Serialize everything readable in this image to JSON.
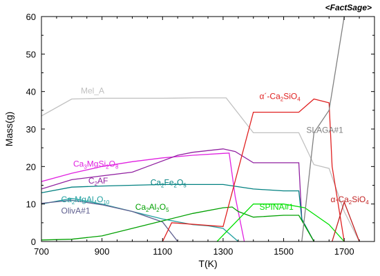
{
  "chart_data": {
    "type": "line",
    "brand": "<FactSage>",
    "xlabel": "T(K)",
    "ylabel": "Mass(g)",
    "xlim": [
      700,
      1800
    ],
    "ylim": [
      0,
      60
    ],
    "xticks": [
      700,
      900,
      1100,
      1300,
      1500,
      1700
    ],
    "yticks": [
      0,
      10,
      20,
      30,
      40,
      50,
      60
    ],
    "grid": false,
    "series": [
      {
        "name": "Mel_A",
        "color": "#c0c0c0",
        "label": {
          "parts": [
            {
              "t": "Mel_A"
            }
          ],
          "at": [
            830,
            39.5
          ]
        },
        "points": [
          [
            700,
            33.5
          ],
          [
            800,
            38
          ],
          [
            900,
            38.2
          ],
          [
            1000,
            38.2
          ],
          [
            1100,
            38.2
          ],
          [
            1200,
            38.3
          ],
          [
            1310,
            38.3
          ],
          [
            1400,
            29
          ],
          [
            1500,
            29
          ],
          [
            1550,
            29
          ],
          [
            1600,
            20.5
          ],
          [
            1650,
            19.5
          ],
          [
            1700,
            8
          ],
          [
            1750,
            0
          ]
        ]
      },
      {
        "name": "Ca3MgSi2O8",
        "color": "#e020e0",
        "label": {
          "parts": [
            {
              "t": "Ca"
            },
            {
              "t": "3",
              "s": 1
            },
            {
              "t": "MgSi"
            },
            {
              "t": "2",
              "s": 1
            },
            {
              "t": "O"
            },
            {
              "t": "8",
              "s": 1
            }
          ],
          "at": [
            805,
            20
          ]
        },
        "points": [
          [
            700,
            16
          ],
          [
            800,
            18.2
          ],
          [
            900,
            20
          ],
          [
            1000,
            21.3
          ],
          [
            1100,
            22.3
          ],
          [
            1200,
            23
          ],
          [
            1300,
            23.5
          ],
          [
            1320,
            23.6
          ],
          [
            1340,
            12
          ],
          [
            1370,
            0
          ]
        ]
      },
      {
        "name": "C2AF",
        "color": "#9020a0",
        "label": {
          "parts": [
            {
              "t": "C"
            },
            {
              "t": "2",
              "s": 1
            },
            {
              "t": "AF"
            }
          ],
          "at": [
            855,
            15.5
          ]
        },
        "points": [
          [
            700,
            14
          ],
          [
            800,
            16.5
          ],
          [
            900,
            17.5
          ],
          [
            1000,
            18.5
          ],
          [
            1050,
            20
          ],
          [
            1150,
            23
          ],
          [
            1200,
            23.8
          ],
          [
            1300,
            24.7
          ],
          [
            1340,
            24
          ],
          [
            1400,
            21
          ],
          [
            1500,
            21
          ],
          [
            1550,
            21
          ],
          [
            1560,
            6
          ],
          [
            1600,
            0
          ]
        ]
      },
      {
        "name": "Ca2Fe2O5",
        "color": "#008080",
        "label": {
          "parts": [
            {
              "t": "Ca"
            },
            {
              "t": "2",
              "s": 1
            },
            {
              "t": "Fe"
            },
            {
              "t": "2",
              "s": 1
            },
            {
              "t": "O"
            },
            {
              "t": "5",
              "s": 1
            }
          ],
          "at": [
            1060,
            15
          ]
        },
        "points": [
          [
            700,
            13
          ],
          [
            800,
            14.5
          ],
          [
            900,
            14.8
          ],
          [
            1000,
            15
          ],
          [
            1100,
            15.2
          ],
          [
            1200,
            15.2
          ],
          [
            1300,
            15.2
          ],
          [
            1400,
            14
          ],
          [
            1500,
            13.5
          ],
          [
            1550,
            13.5
          ],
          [
            1560,
            6
          ],
          [
            1600,
            0
          ]
        ]
      },
      {
        "name": "Ca2MgAl4O10",
        "color": "#1f9f9f",
        "label": {
          "parts": [
            {
              "t": "Ca"
            },
            {
              "t": "2",
              "s": 1
            },
            {
              "t": "MgAl"
            },
            {
              "t": "4",
              "s": 1
            },
            {
              "t": "O"
            },
            {
              "t": "10",
              "s": 1
            }
          ],
          "at": [
            765,
            10.5
          ]
        },
        "points": [
          [
            700,
            10
          ],
          [
            800,
            11.5
          ],
          [
            900,
            10
          ],
          [
            1000,
            8
          ],
          [
            1100,
            6
          ],
          [
            1200,
            4.5
          ],
          [
            1250,
            4.2
          ],
          [
            1300,
            3.5
          ],
          [
            1350,
            0
          ]
        ]
      },
      {
        "name": "OlivA#1",
        "color": "#606090",
        "label": {
          "parts": [
            {
              "t": "OlivA#1"
            }
          ],
          "at": [
            765,
            7.5
          ]
        },
        "points": [
          [
            700,
            10.2
          ],
          [
            800,
            11
          ],
          [
            900,
            9.8
          ],
          [
            1000,
            8
          ],
          [
            1100,
            5.2
          ],
          [
            1150,
            0
          ]
        ]
      },
      {
        "name": "Ca2Al2O5",
        "color": "#00a000",
        "label": {
          "parts": [
            {
              "t": "Ca"
            },
            {
              "t": "2",
              "s": 1
            },
            {
              "t": "Al"
            },
            {
              "t": "2",
              "s": 1
            },
            {
              "t": "O"
            },
            {
              "t": "5",
              "s": 1
            }
          ],
          "at": [
            1010,
            8.5
          ]
        },
        "points": [
          [
            700,
            0.4
          ],
          [
            800,
            0.6
          ],
          [
            900,
            1.5
          ],
          [
            1000,
            3.5
          ],
          [
            1100,
            5.5
          ],
          [
            1200,
            7.5
          ],
          [
            1300,
            9
          ],
          [
            1330,
            9.2
          ],
          [
            1350,
            8
          ],
          [
            1400,
            6.5
          ],
          [
            1500,
            7
          ],
          [
            1550,
            7
          ],
          [
            1600,
            0
          ]
        ]
      },
      {
        "name": "SPINA#1",
        "color": "#00e000",
        "label": {
          "parts": [
            {
              "t": "SPINA#1"
            }
          ],
          "at": [
            1420,
            8.5
          ]
        },
        "points": [
          [
            1280,
            0
          ],
          [
            1400,
            10
          ],
          [
            1500,
            10
          ],
          [
            1570,
            9
          ],
          [
            1650,
            4.5
          ],
          [
            1700,
            0
          ]
        ]
      },
      {
        "name": "α'-Ca2SiO4",
        "color": "#e02020",
        "label": {
          "parts": [
            {
              "t": "α´-Ca"
            },
            {
              "t": "2",
              "s": 1
            },
            {
              "t": "SiO"
            },
            {
              "t": "4",
              "s": 1
            }
          ],
          "at": [
            1420,
            38
          ]
        },
        "points": [
          [
            1100,
            0
          ],
          [
            1130,
            5
          ],
          [
            1300,
            4
          ],
          [
            1400,
            34.5
          ],
          [
            1550,
            34.5
          ],
          [
            1600,
            38
          ],
          [
            1650,
            37
          ],
          [
            1660,
            20
          ],
          [
            1700,
            0
          ]
        ]
      },
      {
        "name": "α-Ca2SiO4",
        "color": "#c02020",
        "label": {
          "parts": [
            {
              "t": "α-Ca"
            },
            {
              "t": "2",
              "s": 1
            },
            {
              "t": "SiO"
            },
            {
              "t": "4",
              "s": 1
            }
          ],
          "at": [
            1655,
            10.5
          ]
        },
        "points": [
          [
            1660,
            0
          ],
          [
            1700,
            10.5
          ],
          [
            1750,
            0
          ]
        ]
      },
      {
        "name": "SLAGA#1",
        "color": "#808080",
        "label": {
          "parts": [
            {
              "t": "SLAGA#1"
            }
          ],
          "at": [
            1575,
            29
          ]
        },
        "points": [
          [
            1560,
            0
          ],
          [
            1600,
            29
          ],
          [
            1650,
            35
          ],
          [
            1700,
            60
          ]
        ]
      }
    ]
  }
}
